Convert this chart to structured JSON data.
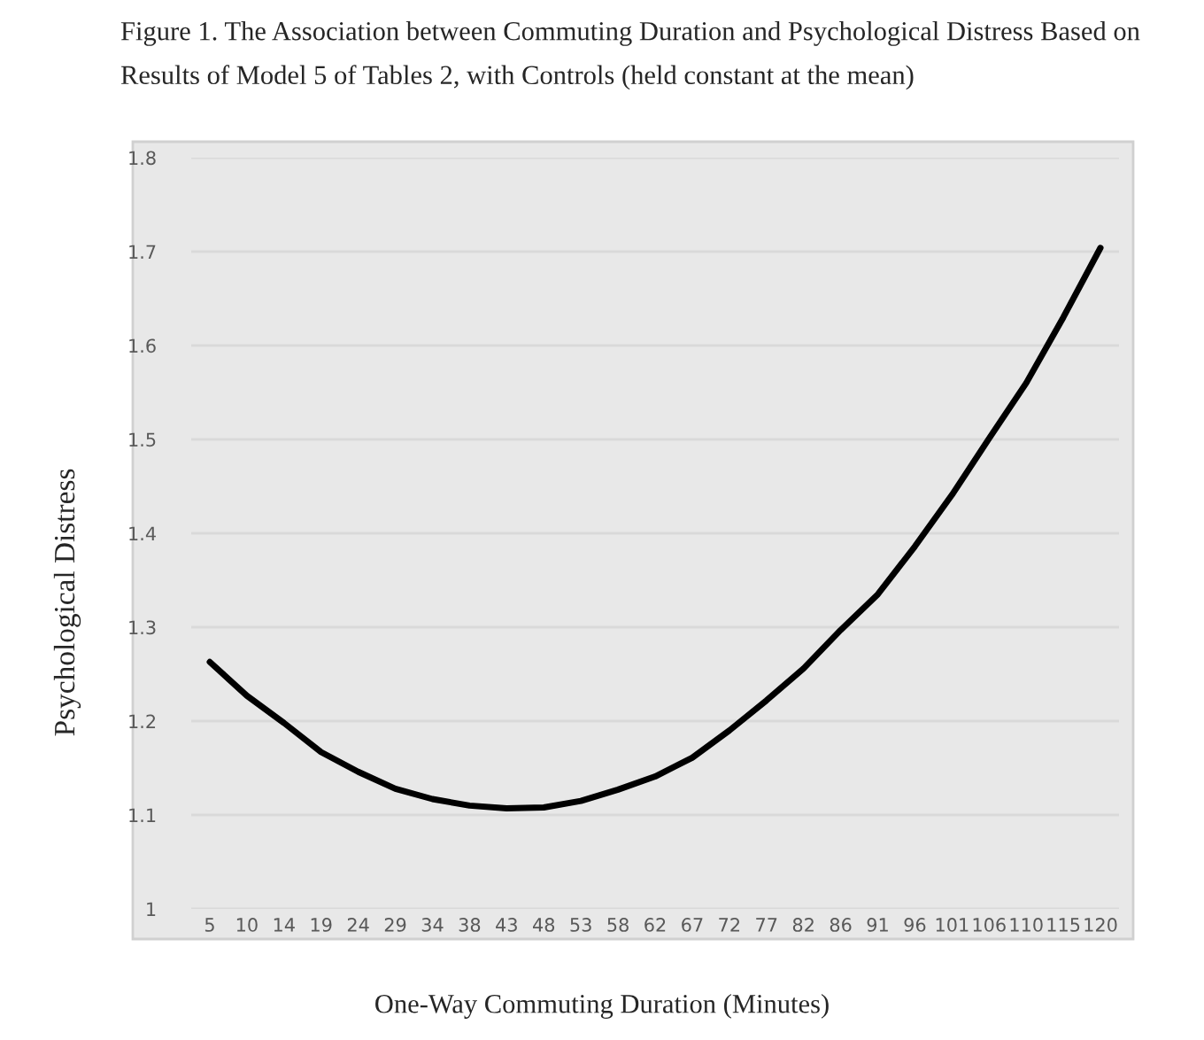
{
  "chart_data": {
    "type": "line",
    "title": "Figure 1. The Association between Commuting Duration and Psychological Distress Based on Results of Model 5 of Tables 2, with Controls (held constant at the mean)",
    "xlabel": "One-Way Commuting Duration (Minutes)",
    "ylabel": "Psychological Distress",
    "categories": [
      "5",
      "10",
      "14",
      "19",
      "24",
      "29",
      "34",
      "38",
      "43",
      "48",
      "53",
      "58",
      "62",
      "67",
      "72",
      "77",
      "82",
      "86",
      "91",
      "96",
      "101",
      "106",
      "110",
      "115",
      "120"
    ],
    "series": [
      {
        "color": "#000000",
        "values": [
          1.263,
          1.227,
          1.198,
          1.167,
          1.146,
          1.128,
          1.117,
          1.11,
          1.107,
          1.108,
          1.115,
          1.127,
          1.141,
          1.161,
          1.19,
          1.222,
          1.256,
          1.297,
          1.335,
          1.386,
          1.441,
          1.501,
          1.56,
          1.63,
          1.704
        ]
      }
    ],
    "ylim": [
      1,
      1.8
    ],
    "yticks": [
      1,
      1.1,
      1.2,
      1.3,
      1.4,
      1.5,
      1.6,
      1.7,
      1.8
    ],
    "grid": "y",
    "marker": "none",
    "line_style": "solid",
    "legend": false
  }
}
